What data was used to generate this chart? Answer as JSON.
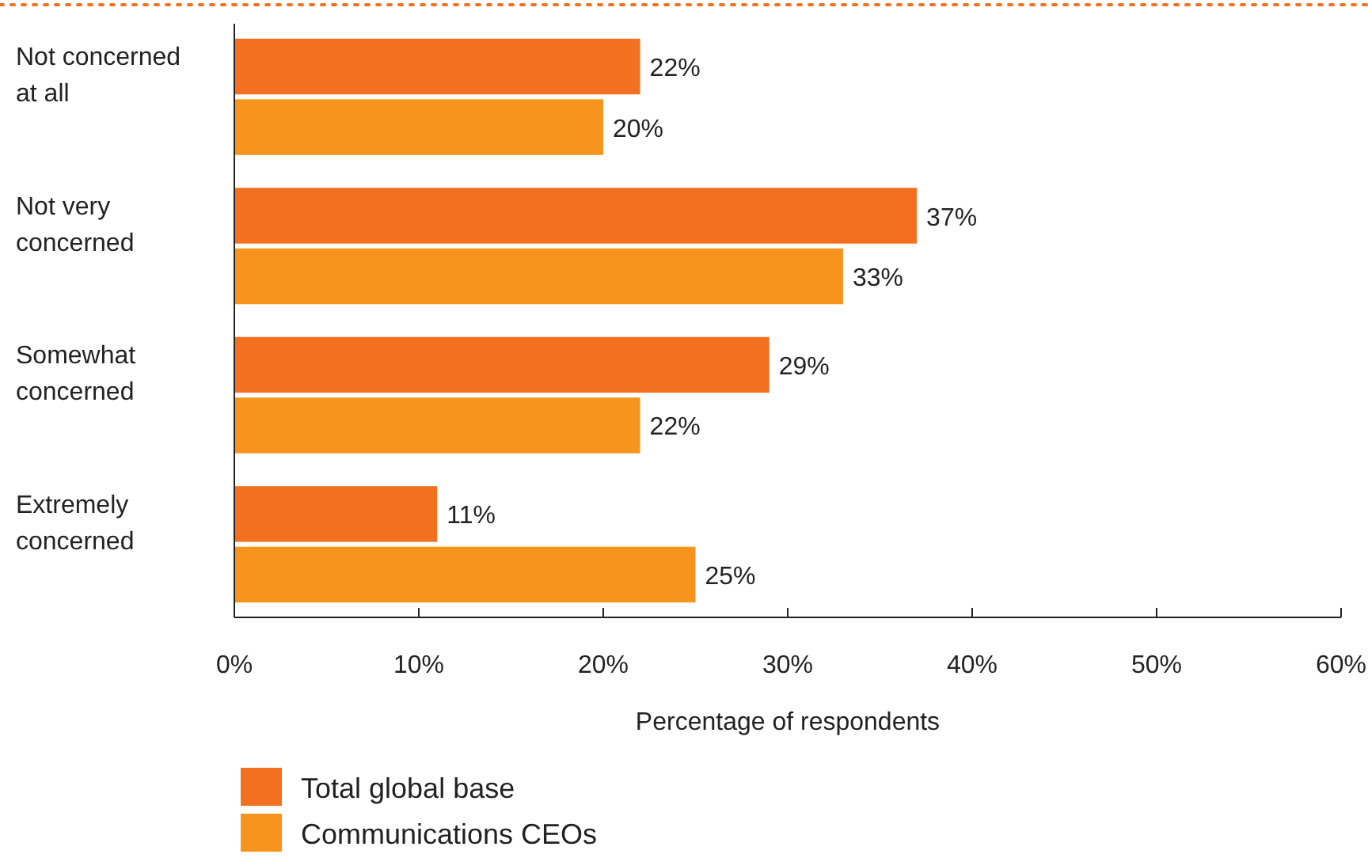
{
  "chart_data": {
    "type": "bar",
    "orientation": "horizontal",
    "xlabel": "Percentage of respondents",
    "categories": [
      "Not concerned at all",
      "Not very concerned",
      "Somewhat concerned",
      "Extremely concerned"
    ],
    "series": [
      {
        "name": "Total global base",
        "color": "#f37021",
        "values": [
          22,
          37,
          29,
          11
        ],
        "value_labels": [
          "22%",
          "37%",
          "29%",
          "11%"
        ]
      },
      {
        "name": "Communications CEOs",
        "color": "#f7941d",
        "values": [
          20,
          33,
          22,
          25
        ],
        "value_labels": [
          "20%",
          "33%",
          "22%",
          "25%"
        ]
      }
    ],
    "xlim": [
      0,
      60
    ],
    "xticks": [
      {
        "value": 0,
        "label": "0%"
      },
      {
        "value": 10,
        "label": "10%"
      },
      {
        "value": 20,
        "label": "20%"
      },
      {
        "value": 30,
        "label": "30%"
      },
      {
        "value": 40,
        "label": "40%"
      },
      {
        "value": 50,
        "label": "50%"
      },
      {
        "value": 60,
        "label": "60%"
      }
    ],
    "grid": false,
    "legend": "bottom left"
  }
}
